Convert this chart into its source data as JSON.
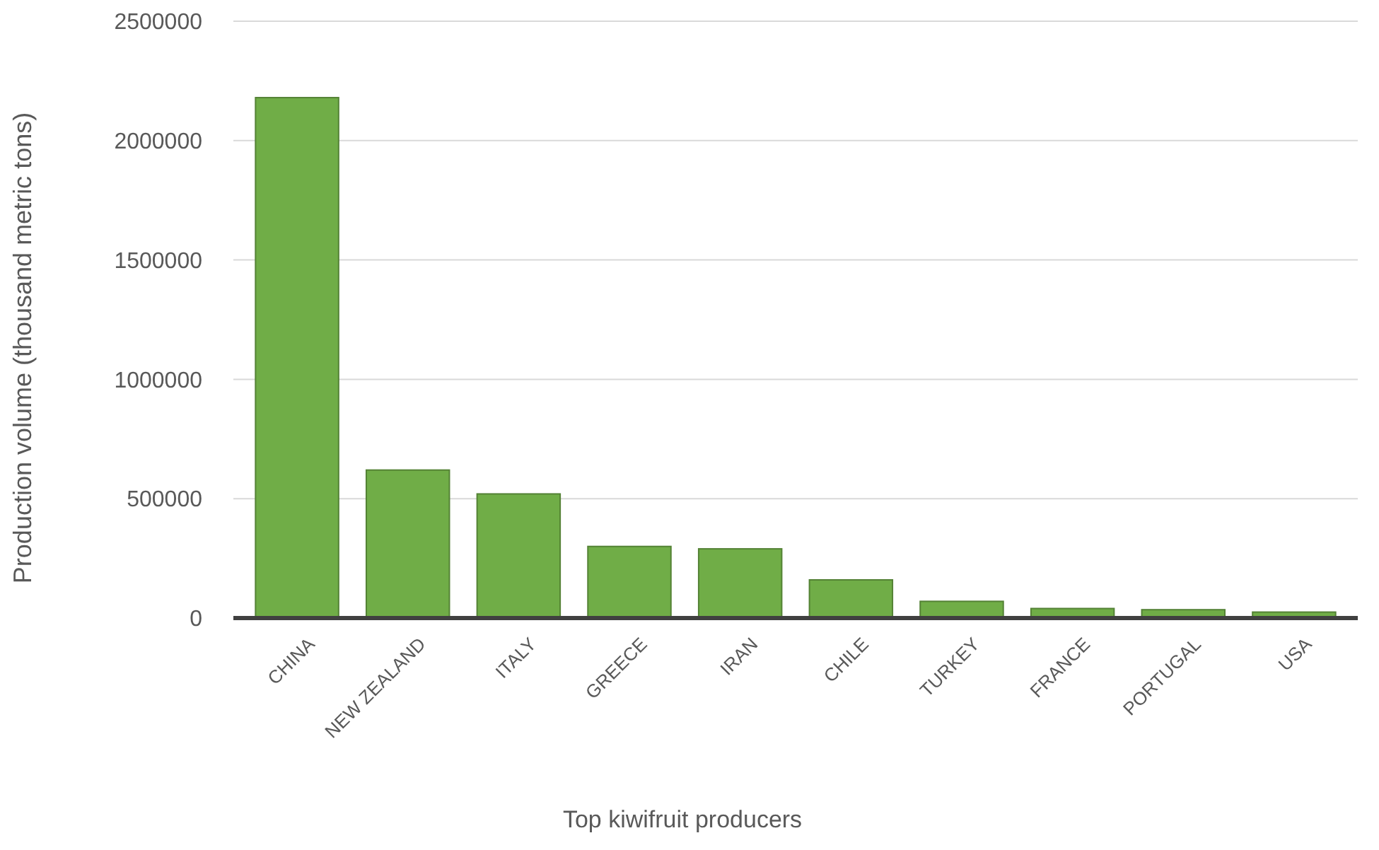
{
  "chart_data": {
    "type": "bar",
    "xlabel": "Top kiwifruit producers",
    "ylabel": "Production volume (thousand metric tons)",
    "categories": [
      "CHINA",
      "NEW ZEALAND",
      "ITALY",
      "GREECE",
      "IRAN",
      "CHILE",
      "TURKEY",
      "FRANCE",
      "PORTUGAL",
      "USA"
    ],
    "values": [
      2180000,
      620000,
      520000,
      300000,
      290000,
      160000,
      70000,
      40000,
      35000,
      25000
    ],
    "color": "#70ad47",
    "ylim": [
      0,
      2500000
    ],
    "yticks": [
      0,
      500000,
      1000000,
      1500000,
      2000000,
      2500000
    ],
    "grid": "y"
  }
}
